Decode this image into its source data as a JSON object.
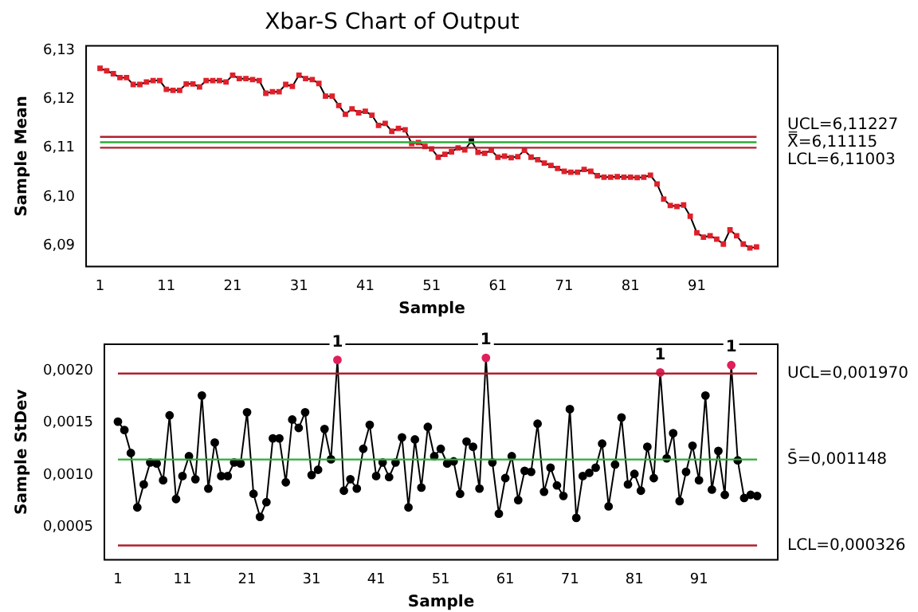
{
  "chart_data": [
    {
      "type": "line",
      "title": "Xbar-S Chart of Output",
      "xlabel": "Sample",
      "ylabel": "Sample Mean",
      "marker": "square",
      "grid": false,
      "legend": false,
      "x": [
        1,
        2,
        3,
        4,
        5,
        6,
        7,
        8,
        9,
        10,
        11,
        12,
        13,
        14,
        15,
        16,
        17,
        18,
        19,
        20,
        21,
        22,
        23,
        24,
        25,
        26,
        27,
        28,
        29,
        30,
        31,
        32,
        33,
        34,
        35,
        36,
        37,
        38,
        39,
        40,
        41,
        42,
        43,
        44,
        45,
        46,
        47,
        48,
        49,
        50,
        51,
        52,
        53,
        54,
        55,
        56,
        57,
        58,
        59,
        60,
        61,
        62,
        63,
        64,
        65,
        66,
        67,
        68,
        69,
        70,
        71,
        72,
        73,
        74,
        75,
        76,
        77,
        78,
        79,
        80,
        81,
        82,
        83,
        84,
        85,
        86,
        87,
        88,
        89,
        90,
        91,
        92,
        93,
        94,
        95,
        96,
        97,
        98,
        99,
        100
      ],
      "xlim": [
        -1.1,
        103.2
      ],
      "xticks": [
        1,
        11,
        21,
        31,
        41,
        51,
        61,
        71,
        81,
        91
      ],
      "ylim": [
        6.0857,
        6.1309
      ],
      "yticks": [
        {
          "value": 6.09,
          "label": "6,09"
        },
        {
          "value": 6.1,
          "label": "6,10"
        },
        {
          "value": 6.11,
          "label": "6,11"
        },
        {
          "value": 6.12,
          "label": "6,12"
        },
        {
          "value": 6.13,
          "label": "6,13"
        }
      ],
      "ref_lines": [
        {
          "axis": "y",
          "value": 6.11227,
          "label": "UCL=6,11227",
          "color": "#b0202e"
        },
        {
          "axis": "y",
          "value": 6.11115,
          "label": "X̿=6,11115",
          "color": "#2eaa3a"
        },
        {
          "axis": "y",
          "value": 6.11003,
          "label": "LCL=6,11003",
          "color": "#b0202e"
        }
      ],
      "series": [
        {
          "color": "#000000",
          "values": [
            6.1263,
            6.1258,
            6.1252,
            6.1244,
            6.1244,
            6.123,
            6.123,
            6.1235,
            6.1238,
            6.1238,
            6.122,
            6.1218,
            6.1218,
            6.1231,
            6.1231,
            6.1225,
            6.1238,
            6.1238,
            6.1238,
            6.1235,
            6.1249,
            6.1242,
            6.1242,
            6.124,
            6.1238,
            6.1212,
            6.1215,
            6.1215,
            6.123,
            6.1226,
            6.1249,
            6.1242,
            6.124,
            6.1232,
            6.1206,
            6.1206,
            6.1187,
            6.1169,
            6.118,
            6.1172,
            6.1175,
            6.1167,
            6.1146,
            6.115,
            6.1134,
            6.114,
            6.1137,
            6.1109,
            6.1111,
            6.1103,
            6.1098,
            6.1081,
            6.1087,
            6.1092,
            6.11,
            6.1096,
            6.1114,
            6.1091,
            6.1089,
            6.1095,
            6.1081,
            6.1083,
            6.108,
            6.1082,
            6.1095,
            6.1081,
            6.1076,
            6.1069,
            6.1064,
            6.1058,
            6.1052,
            6.105,
            6.105,
            6.1056,
            6.1052,
            6.1043,
            6.104,
            6.104,
            6.1041,
            6.104,
            6.104,
            6.1039,
            6.104,
            6.1044,
            6.1026,
            6.0995,
            6.0982,
            6.098,
            6.0983,
            6.096,
            6.0926,
            6.0917,
            6.092,
            6.0913,
            6.0903,
            6.0932,
            6.092,
            6.0903,
            6.0895,
            6.0897
          ],
          "colors": [
            "#e0202a",
            "#e0202a",
            "#e0202a",
            "#e0202a",
            "#e0202a",
            "#e0202a",
            "#e0202a",
            "#e0202a",
            "#e0202a",
            "#e0202a",
            "#e0202a",
            "#e0202a",
            "#e0202a",
            "#e0202a",
            "#e0202a",
            "#e0202a",
            "#e0202a",
            "#e0202a",
            "#e0202a",
            "#e0202a",
            "#e0202a",
            "#e0202a",
            "#e0202a",
            "#e0202a",
            "#e0202a",
            "#e0202a",
            "#e0202a",
            "#e0202a",
            "#e0202a",
            "#e0202a",
            "#e0202a",
            "#e0202a",
            "#e0202a",
            "#e0202a",
            "#e0202a",
            "#e0202a",
            "#e0202a",
            "#e0202a",
            "#e0202a",
            "#e0202a",
            "#e0202a",
            "#e0202a",
            "#e0202a",
            "#e0202a",
            "#e0202a",
            "#e0202a",
            "#e0202a",
            "#e0202a",
            "#e0202a",
            "#e0202a",
            "#e0202a",
            "#e0202a",
            "#e0202a",
            "#e0202a",
            "#e0202a",
            "#e0202a",
            "#000000",
            "#e0202a",
            "#e0202a",
            "#e0202a",
            "#e0202a",
            "#e0202a",
            "#e0202a",
            "#e0202a",
            "#e0202a",
            "#e0202a",
            "#e0202a",
            "#e0202a",
            "#e0202a",
            "#e0202a",
            "#e0202a",
            "#e0202a",
            "#e0202a",
            "#e0202a",
            "#e0202a",
            "#e0202a",
            "#e0202a",
            "#e0202a",
            "#e0202a",
            "#e0202a",
            "#e0202a",
            "#e0202a",
            "#e0202a",
            "#e0202a",
            "#e0202a",
            "#e0202a",
            "#e0202a",
            "#e0202a",
            "#e0202a",
            "#e0202a",
            "#e0202a",
            "#e0202a",
            "#e0202a",
            "#e0202a",
            "#e0202a",
            "#e0202a",
            "#e0202a",
            "#e0202a",
            "#e0202a",
            "#e0202a"
          ]
        }
      ]
    },
    {
      "type": "line",
      "xlabel": "Sample",
      "ylabel": "Sample StDev",
      "marker": "circle",
      "grid": false,
      "legend": false,
      "x": [
        1,
        2,
        3,
        4,
        5,
        6,
        7,
        8,
        9,
        10,
        11,
        12,
        13,
        14,
        15,
        16,
        17,
        18,
        19,
        20,
        21,
        22,
        23,
        24,
        25,
        26,
        27,
        28,
        29,
        30,
        31,
        32,
        33,
        34,
        35,
        36,
        37,
        38,
        39,
        40,
        41,
        42,
        43,
        44,
        45,
        46,
        47,
        48,
        49,
        50,
        51,
        52,
        53,
        54,
        55,
        56,
        57,
        58,
        59,
        60,
        61,
        62,
        63,
        64,
        65,
        66,
        67,
        68,
        69,
        70,
        71,
        72,
        73,
        74,
        75,
        76,
        77,
        78,
        79,
        80,
        81,
        82,
        83,
        84,
        85,
        86,
        87,
        88,
        89,
        90,
        91,
        92,
        93,
        94,
        95,
        96,
        97,
        98,
        99,
        100
      ],
      "xlim": [
        -1.1,
        103.2
      ],
      "xticks": [
        1,
        11,
        21,
        31,
        41,
        51,
        61,
        71,
        81,
        91
      ],
      "ylim": [
        0.00019,
        0.00225
      ],
      "yticks": [
        {
          "value": 0.0005,
          "label": "0,0005"
        },
        {
          "value": 0.001,
          "label": "0,0010"
        },
        {
          "value": 0.0015,
          "label": "0,0015"
        },
        {
          "value": 0.002,
          "label": "0,0020"
        }
      ],
      "ref_lines": [
        {
          "axis": "y",
          "value": 0.00197,
          "label": "UCL=0,001970",
          "color": "#b0202e"
        },
        {
          "axis": "y",
          "value": 0.001148,
          "label": "S̄=0,001148",
          "color": "#2eaa3a"
        },
        {
          "axis": "y",
          "value": 0.000326,
          "label": "LCL=0,000326",
          "color": "#b0202e"
        }
      ],
      "annotations": [
        {
          "text": "1",
          "x": 35,
          "y": 0.0021
        },
        {
          "text": "1",
          "x": 58,
          "y": 0.00212
        },
        {
          "text": "1",
          "x": 85,
          "y": 0.00198
        },
        {
          "text": "1",
          "x": 96,
          "y": 0.00205
        }
      ],
      "series": [
        {
          "color": "#000000",
          "values": [
            0.00151,
            0.00143,
            0.00121,
            0.00069,
            0.00091,
            0.00112,
            0.00111,
            0.00095,
            0.00157,
            0.00077,
            0.00099,
            0.00118,
            0.00096,
            0.00176,
            0.00087,
            0.00131,
            0.00099,
            0.00099,
            0.00112,
            0.00111,
            0.0016,
            0.00082,
            0.0006,
            0.00074,
            0.00135,
            0.00135,
            0.00093,
            0.00153,
            0.00145,
            0.0016,
            0.001,
            0.00105,
            0.00144,
            0.00115,
            0.0021,
            0.00085,
            0.00096,
            0.00087,
            0.00125,
            0.00148,
            0.00099,
            0.00112,
            0.00098,
            0.00112,
            0.00136,
            0.00069,
            0.00134,
            0.00088,
            0.00146,
            0.00118,
            0.00125,
            0.00111,
            0.00113,
            0.00082,
            0.00132,
            0.00127,
            0.00087,
            0.00212,
            0.00112,
            0.00063,
            0.00097,
            0.00118,
            0.00076,
            0.00104,
            0.00103,
            0.00149,
            0.00084,
            0.00107,
            0.0009,
            0.0008,
            0.00163,
            0.00059,
            0.00099,
            0.00102,
            0.00107,
            0.0013,
            0.0007,
            0.0011,
            0.00155,
            0.00091,
            0.00101,
            0.00085,
            0.00127,
            0.00097,
            0.00198,
            0.00116,
            0.0014,
            0.00075,
            0.00103,
            0.00128,
            0.00095,
            0.00176,
            0.00086,
            0.00123,
            0.00081,
            0.00205,
            0.00114,
            0.00078,
            0.00081,
            0.0008
          ],
          "colors": [
            "#000000",
            "#000000",
            "#000000",
            "#000000",
            "#000000",
            "#000000",
            "#000000",
            "#000000",
            "#000000",
            "#000000",
            "#000000",
            "#000000",
            "#000000",
            "#000000",
            "#000000",
            "#000000",
            "#000000",
            "#000000",
            "#000000",
            "#000000",
            "#000000",
            "#000000",
            "#000000",
            "#000000",
            "#000000",
            "#000000",
            "#000000",
            "#000000",
            "#000000",
            "#000000",
            "#000000",
            "#000000",
            "#000000",
            "#000000",
            "#e0205a",
            "#000000",
            "#000000",
            "#000000",
            "#000000",
            "#000000",
            "#000000",
            "#000000",
            "#000000",
            "#000000",
            "#000000",
            "#000000",
            "#000000",
            "#000000",
            "#000000",
            "#000000",
            "#000000",
            "#000000",
            "#000000",
            "#000000",
            "#000000",
            "#000000",
            "#000000",
            "#e0205a",
            "#000000",
            "#000000",
            "#000000",
            "#000000",
            "#000000",
            "#000000",
            "#000000",
            "#000000",
            "#000000",
            "#000000",
            "#000000",
            "#000000",
            "#000000",
            "#000000",
            "#000000",
            "#000000",
            "#000000",
            "#000000",
            "#000000",
            "#000000",
            "#000000",
            "#000000",
            "#000000",
            "#000000",
            "#000000",
            "#000000",
            "#e0205a",
            "#000000",
            "#000000",
            "#000000",
            "#000000",
            "#000000",
            "#000000",
            "#000000",
            "#000000",
            "#000000",
            "#000000",
            "#e0205a",
            "#000000",
            "#000000",
            "#000000",
            "#000000"
          ]
        }
      ]
    }
  ]
}
